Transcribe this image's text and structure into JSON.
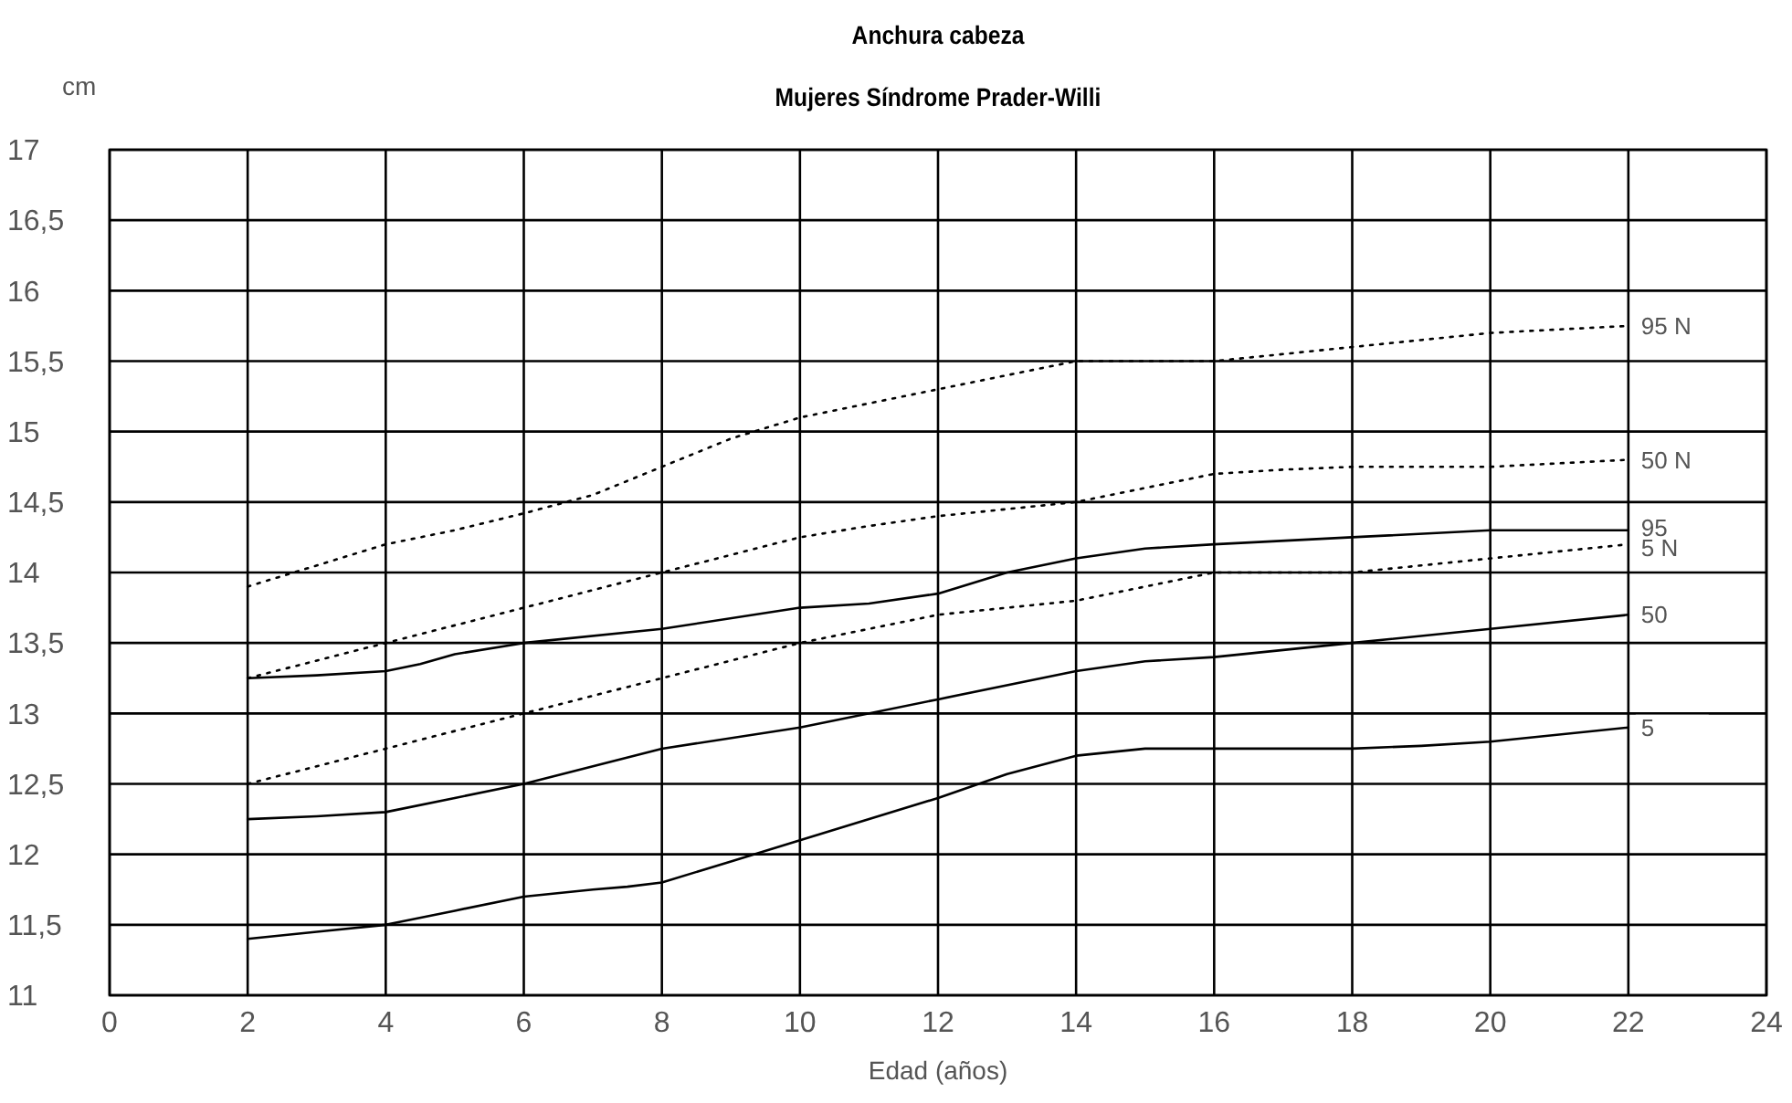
{
  "chart_data": {
    "type": "line",
    "title": "Anchura cabeza",
    "subtitle": "Mujeres Síndrome Prader-Willi",
    "xlabel": "Edad (años)",
    "ylabel": "cm",
    "xlim": [
      0,
      24
    ],
    "xticks": [
      0,
      2,
      4,
      6,
      8,
      10,
      12,
      14,
      16,
      18,
      20,
      22,
      24
    ],
    "ylim": [
      11,
      17
    ],
    "yticks": [
      11,
      {
        "value": 11.5,
        "label": "11,5"
      },
      12,
      {
        "value": 12.5,
        "label": "12,5"
      },
      13,
      {
        "value": 13.5,
        "label": "13,5"
      },
      14,
      {
        "value": 14.5,
        "label": "14,5"
      },
      15,
      {
        "value": 15.5,
        "label": "15,5"
      },
      16,
      {
        "value": 16.5,
        "label": "16,5"
      },
      17
    ],
    "grid": true,
    "series": [
      {
        "name": "95 N",
        "color": "#000000",
        "line_style": "dotted",
        "x": [
          2,
          4,
          5,
          6,
          7,
          8,
          9,
          10,
          11,
          12,
          13,
          14,
          16,
          17,
          18,
          20,
          22
        ],
        "values": [
          13.9,
          14.2,
          14.3,
          14.42,
          14.55,
          14.75,
          14.95,
          15.1,
          15.2,
          15.3,
          15.4,
          15.5,
          15.5,
          15.55,
          15.6,
          15.7,
          15.75
        ]
      },
      {
        "name": "50 N",
        "color": "#000000",
        "line_style": "dotted",
        "x": [
          2,
          4,
          6,
          8,
          10,
          11,
          12,
          14,
          15,
          16,
          17,
          18,
          20,
          22
        ],
        "values": [
          13.25,
          13.5,
          13.75,
          14,
          14.25,
          14.33,
          14.4,
          14.5,
          14.6,
          14.7,
          14.73,
          14.75,
          14.75,
          14.8
        ]
      },
      {
        "name": "95",
        "color": "#000000",
        "line_style": "solid",
        "x": [
          2,
          3,
          4,
          4.5,
          5,
          6,
          8,
          10,
          11,
          12,
          13,
          14,
          15,
          16,
          18,
          20,
          22
        ],
        "values": [
          13.25,
          13.27,
          13.3,
          13.35,
          13.42,
          13.5,
          13.6,
          13.75,
          13.78,
          13.85,
          14,
          14.1,
          14.17,
          14.2,
          14.25,
          14.3,
          14.3
        ]
      },
      {
        "name": "5 N",
        "color": "#000000",
        "line_style": "dotted",
        "x": [
          2,
          4,
          6,
          8,
          10,
          12,
          14,
          16,
          18,
          20,
          22
        ],
        "values": [
          12.5,
          12.75,
          13,
          13.25,
          13.5,
          13.7,
          13.8,
          14,
          14,
          14.1,
          14.2
        ]
      },
      {
        "name": "50",
        "color": "#000000",
        "line_style": "solid",
        "x": [
          2,
          3,
          4,
          5,
          6,
          8,
          10,
          12,
          14,
          15,
          16,
          18,
          20,
          22
        ],
        "values": [
          12.25,
          12.27,
          12.3,
          12.4,
          12.5,
          12.75,
          12.9,
          13.1,
          13.3,
          13.37,
          13.4,
          13.5,
          13.6,
          13.7
        ]
      },
      {
        "name": "5",
        "color": "#000000",
        "line_style": "solid",
        "x": [
          2,
          3,
          4,
          5,
          6,
          7,
          7.5,
          8,
          9,
          10,
          12,
          13,
          14,
          15,
          18,
          19,
          20,
          22
        ],
        "values": [
          11.4,
          11.45,
          11.5,
          11.6,
          11.7,
          11.75,
          11.77,
          11.8,
          11.95,
          12.1,
          12.4,
          12.57,
          12.7,
          12.75,
          12.75,
          12.77,
          12.8,
          12.9
        ]
      }
    ]
  }
}
